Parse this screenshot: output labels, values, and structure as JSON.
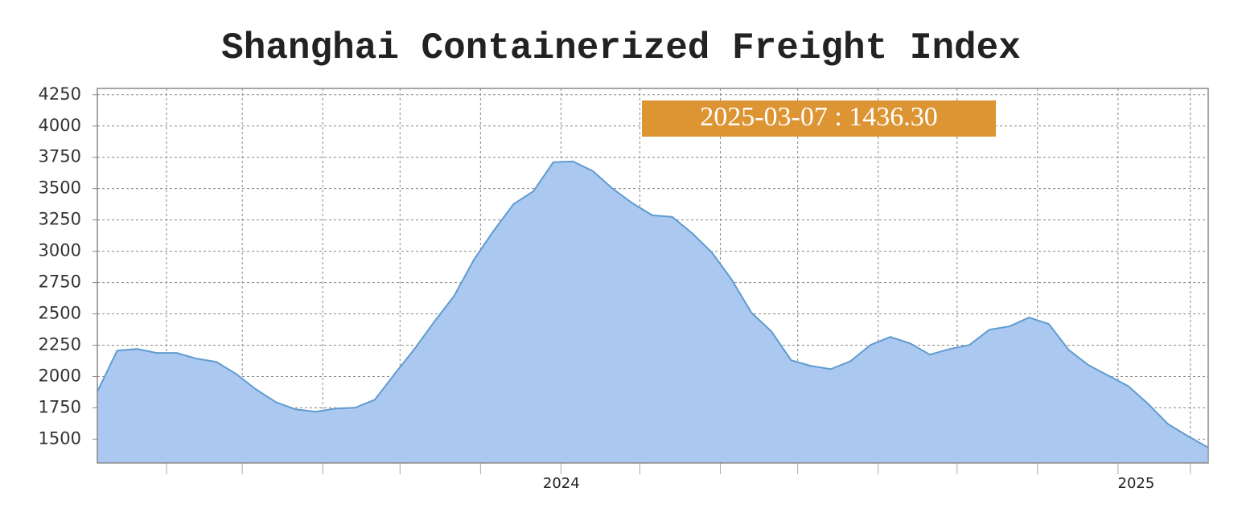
{
  "chart_data": {
    "type": "area",
    "title": "Shanghai Containerized Freight Index",
    "annotation": "2025-03-07 : 1436.30",
    "categories": [
      null,
      null,
      null,
      null,
      null,
      null,
      null,
      null,
      null,
      null,
      null,
      null,
      null,
      null,
      null,
      null,
      null,
      null,
      null,
      null,
      null,
      null,
      null,
      "2024",
      null,
      null,
      null,
      null,
      null,
      null,
      null,
      null,
      null,
      null,
      null,
      null,
      null,
      null,
      null,
      null,
      null,
      null,
      null,
      null,
      null,
      null,
      null,
      null,
      null,
      null,
      null,
      null,
      "2025",
      null,
      null,
      null,
      null
    ],
    "values": [
      1879,
      2207,
      2220,
      2188,
      2188,
      2143,
      2117,
      2021,
      1898,
      1796,
      1738,
      1719,
      1744,
      1751,
      1815,
      2021,
      2220,
      2438,
      2644,
      2933,
      3165,
      3377,
      3479,
      3711,
      3717,
      3640,
      3499,
      3383,
      3287,
      3274,
      3145,
      2991,
      2773,
      2509,
      2361,
      2130,
      2085,
      2059,
      2123,
      2252,
      2316,
      2265,
      2175,
      2220,
      2252,
      2374,
      2400,
      2471,
      2419,
      2213,
      2091,
      2008,
      1924,
      1783,
      1622,
      1526,
      1436.3
    ],
    "color": "#abc8f0",
    "line_color": "#5f9ccf",
    "ylim": [
      1310,
      4300
    ],
    "yticks": [
      1500,
      1750,
      2000,
      2250,
      2500,
      2750,
      3000,
      3250,
      3500,
      3750,
      4000,
      4250
    ],
    "xticks": [
      3.49,
      7.31,
      11.37,
      15.27,
      19.33,
      23.39,
      27.37,
      31.43,
      35.33,
      39.39,
      43.37,
      47.43,
      51.49,
      55.14
    ],
    "grid": true
  }
}
